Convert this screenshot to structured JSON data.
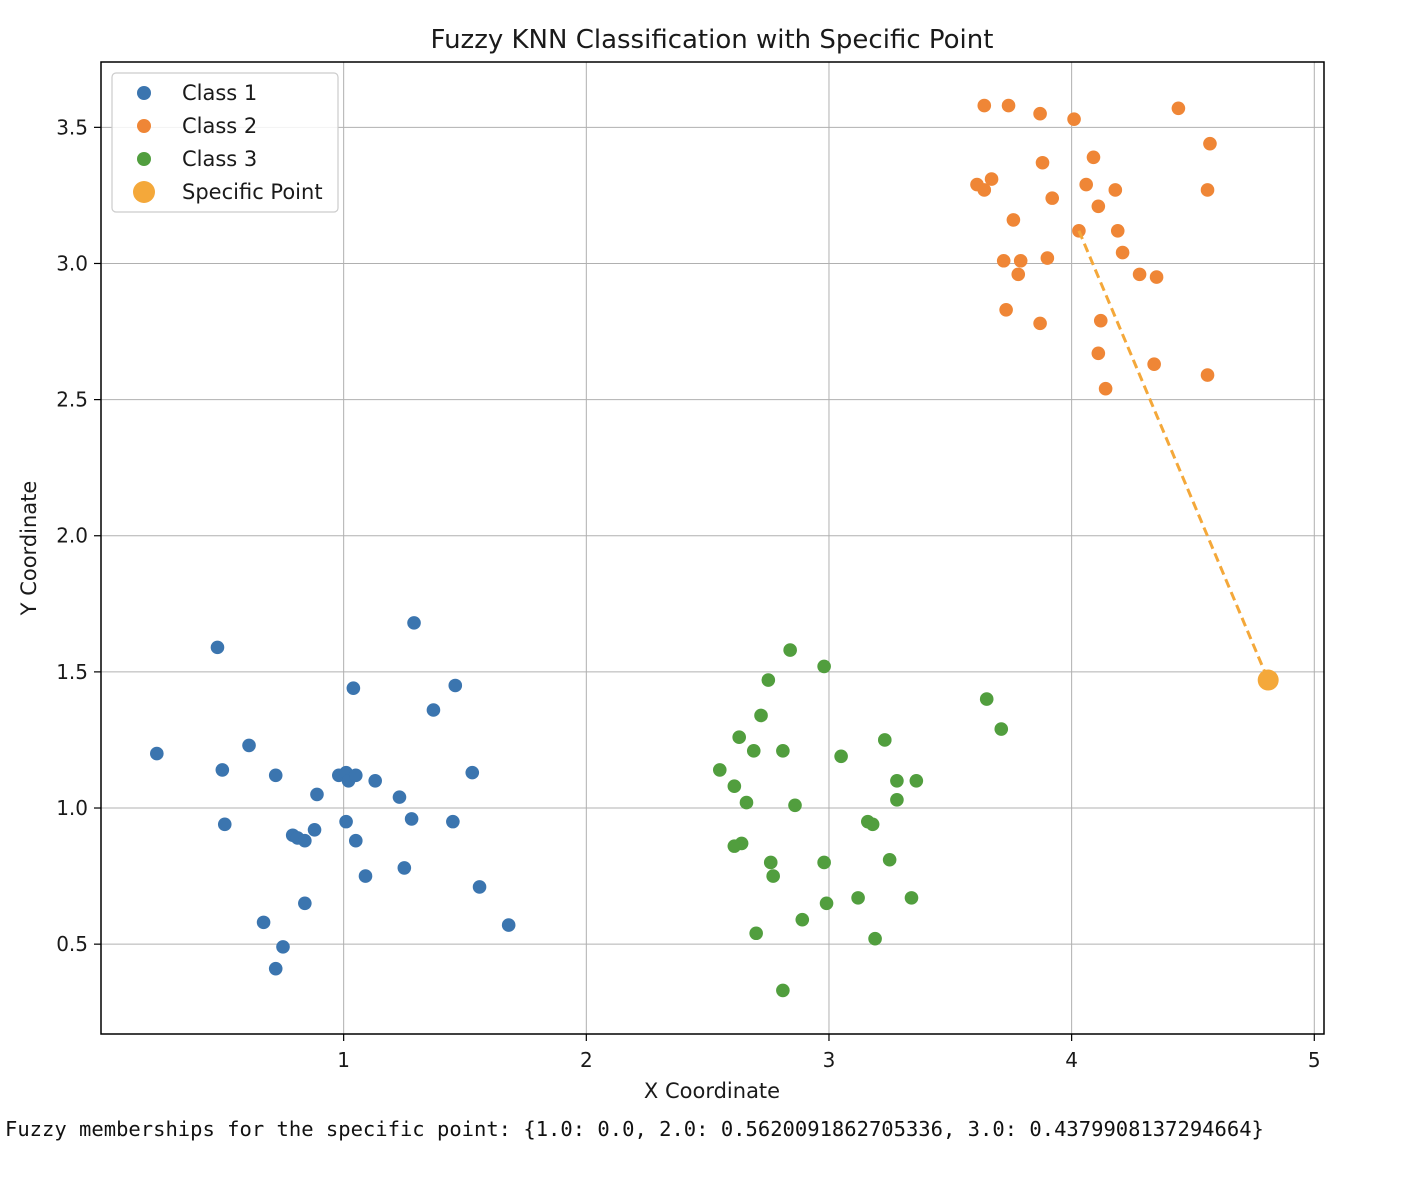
{
  "chart_data": {
    "type": "scatter",
    "title": "Fuzzy KNN Classification with Specific Point",
    "xlabel": "X Coordinate",
    "ylabel": "Y Coordinate",
    "xlim": [
      0.0,
      5.04
    ],
    "ylim": [
      0.17,
      3.74
    ],
    "xticks": [
      1,
      2,
      3,
      4,
      5
    ],
    "yticks": [
      0.5,
      1.0,
      1.5,
      2.0,
      2.5,
      3.0,
      3.5
    ],
    "ytick_labels": [
      "0.5",
      "1.0",
      "1.5",
      "2.0",
      "2.5",
      "3.0",
      "3.5"
    ],
    "grid": true,
    "legend": "top-left",
    "series": [
      {
        "name": "Class 1",
        "color": "#3b75af",
        "points": [
          [
            0.23,
            1.2
          ],
          [
            0.48,
            1.59
          ],
          [
            0.5,
            1.14
          ],
          [
            0.51,
            0.94
          ],
          [
            0.61,
            1.23
          ],
          [
            0.72,
            1.12
          ],
          [
            0.67,
            0.58
          ],
          [
            0.75,
            0.49
          ],
          [
            0.72,
            0.41
          ],
          [
            0.79,
            0.9
          ],
          [
            0.81,
            0.89
          ],
          [
            0.84,
            0.88
          ],
          [
            0.84,
            0.65
          ],
          [
            0.88,
            0.92
          ],
          [
            0.89,
            1.05
          ],
          [
            0.98,
            1.12
          ],
          [
            1.01,
            1.13
          ],
          [
            1.02,
            1.1
          ],
          [
            1.05,
            1.12
          ],
          [
            1.01,
            0.95
          ],
          [
            1.05,
            0.88
          ],
          [
            1.04,
            1.44
          ],
          [
            1.09,
            0.75
          ],
          [
            1.13,
            1.1
          ],
          [
            1.23,
            1.04
          ],
          [
            1.25,
            0.78
          ],
          [
            1.28,
            0.96
          ],
          [
            1.29,
            1.68
          ],
          [
            1.37,
            1.36
          ],
          [
            1.45,
            0.95
          ],
          [
            1.46,
            1.45
          ],
          [
            1.53,
            1.13
          ],
          [
            1.56,
            0.71
          ],
          [
            1.68,
            0.57
          ]
        ]
      },
      {
        "name": "Class 2",
        "color": "#ef8636",
        "points": [
          [
            3.64,
            3.58
          ],
          [
            3.74,
            3.58
          ],
          [
            3.87,
            3.55
          ],
          [
            4.01,
            3.53
          ],
          [
            4.44,
            3.57
          ],
          [
            4.57,
            3.44
          ],
          [
            4.09,
            3.39
          ],
          [
            3.88,
            3.37
          ],
          [
            3.61,
            3.29
          ],
          [
            3.64,
            3.27
          ],
          [
            3.67,
            3.31
          ],
          [
            4.06,
            3.29
          ],
          [
            4.18,
            3.27
          ],
          [
            4.56,
            3.27
          ],
          [
            3.92,
            3.24
          ],
          [
            4.11,
            3.21
          ],
          [
            3.76,
            3.16
          ],
          [
            4.03,
            3.12
          ],
          [
            4.19,
            3.12
          ],
          [
            4.21,
            3.04
          ],
          [
            3.72,
            3.01
          ],
          [
            3.79,
            3.01
          ],
          [
            3.9,
            3.02
          ],
          [
            3.78,
            2.96
          ],
          [
            4.28,
            2.96
          ],
          [
            4.35,
            2.95
          ],
          [
            3.73,
            2.83
          ],
          [
            3.87,
            2.78
          ],
          [
            4.12,
            2.79
          ],
          [
            4.11,
            2.67
          ],
          [
            4.34,
            2.63
          ],
          [
            4.56,
            2.59
          ],
          [
            4.14,
            2.54
          ]
        ]
      },
      {
        "name": "Class 3",
        "color": "#519e3e",
        "points": [
          [
            2.84,
            1.58
          ],
          [
            2.98,
            1.52
          ],
          [
            2.75,
            1.47
          ],
          [
            2.72,
            1.34
          ],
          [
            2.63,
            1.26
          ],
          [
            2.69,
            1.21
          ],
          [
            2.81,
            1.21
          ],
          [
            3.05,
            1.19
          ],
          [
            3.23,
            1.25
          ],
          [
            2.55,
            1.14
          ],
          [
            2.61,
            1.08
          ],
          [
            2.66,
            1.02
          ],
          [
            2.86,
            1.01
          ],
          [
            3.28,
            1.1
          ],
          [
            3.36,
            1.1
          ],
          [
            3.28,
            1.03
          ],
          [
            3.16,
            0.95
          ],
          [
            3.18,
            0.94
          ],
          [
            2.64,
            0.87
          ],
          [
            2.61,
            0.86
          ],
          [
            2.76,
            0.8
          ],
          [
            2.77,
            0.75
          ],
          [
            2.98,
            0.8
          ],
          [
            3.25,
            0.81
          ],
          [
            2.99,
            0.65
          ],
          [
            3.12,
            0.67
          ],
          [
            3.34,
            0.67
          ],
          [
            2.89,
            0.59
          ],
          [
            2.7,
            0.54
          ],
          [
            3.19,
            0.52
          ],
          [
            2.81,
            0.33
          ],
          [
            3.65,
            1.4
          ],
          [
            3.71,
            1.29
          ]
        ]
      },
      {
        "name": "Specific Point",
        "color": "#f4a83a",
        "points": [
          [
            4.81,
            1.47
          ]
        ]
      }
    ],
    "connector_line": {
      "from": [
        4.03,
        3.12
      ],
      "to": [
        4.81,
        1.47
      ],
      "style": "dashed",
      "color": "#f4a83a"
    }
  },
  "output_text": "Fuzzy memberships for the specific point: {1.0: 0.0, 2.0: 0.5620091862705336, 3.0: 0.4379908137294664}"
}
